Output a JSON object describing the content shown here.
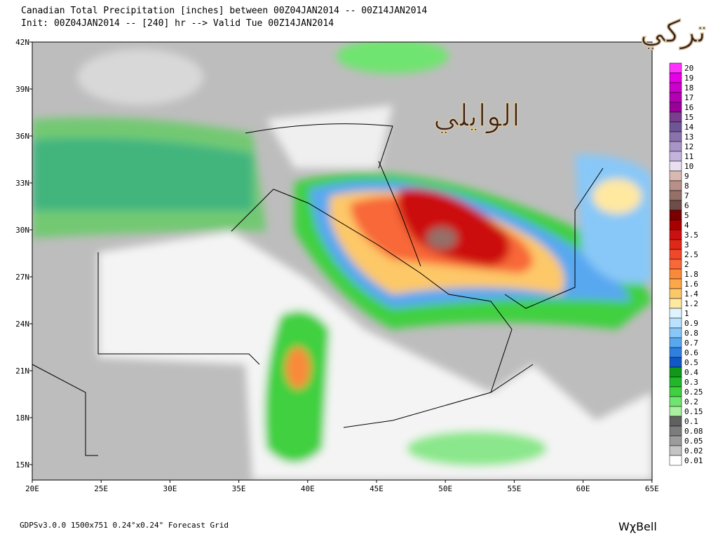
{
  "header": {
    "line1": "Canadian Total Precipitation [inches] between 00Z04JAN2014 -- 00Z14JAN2014",
    "line2": "Init: 00Z04JAN2014 -- [240] hr --> Valid Tue 00Z14JAN2014"
  },
  "watermark": {
    "line1": "تركي",
    "line2": "الوايلي"
  },
  "map": {
    "lat_labels": [
      "42N",
      "39N",
      "36N",
      "33N",
      "30N",
      "27N",
      "24N",
      "21N",
      "18N",
      "15N"
    ],
    "lon_labels": [
      "20E",
      "25E",
      "30E",
      "35E",
      "40E",
      "45E",
      "50E",
      "55E",
      "60E",
      "65E"
    ]
  },
  "legend": {
    "items": [
      {
        "label": "20",
        "color": "#ff33ff"
      },
      {
        "label": "19",
        "color": "#e600e6"
      },
      {
        "label": "18",
        "color": "#cc00cc"
      },
      {
        "label": "17",
        "color": "#b300b3"
      },
      {
        "label": "16",
        "color": "#990099"
      },
      {
        "label": "15",
        "color": "#7a3d8f"
      },
      {
        "label": "14",
        "color": "#6e5696"
      },
      {
        "label": "13",
        "color": "#8a72ad"
      },
      {
        "label": "12",
        "color": "#a894c7"
      },
      {
        "label": "11",
        "color": "#c4b4dc"
      },
      {
        "label": "10",
        "color": "#e8e0f0"
      },
      {
        "label": "9",
        "color": "#d8b8b0"
      },
      {
        "label": "8",
        "color": "#b89088"
      },
      {
        "label": "7",
        "color": "#947068"
      },
      {
        "label": "6",
        "color": "#6e4c48"
      },
      {
        "label": "5",
        "color": "#7a0000"
      },
      {
        "label": "4",
        "color": "#a80000"
      },
      {
        "label": "3.5",
        "color": "#cc1010"
      },
      {
        "label": "3",
        "color": "#e02818"
      },
      {
        "label": "2.5",
        "color": "#f04828"
      },
      {
        "label": "2",
        "color": "#f86838"
      },
      {
        "label": "1.8",
        "color": "#fa8a3a"
      },
      {
        "label": "1.6",
        "color": "#fca848"
      },
      {
        "label": "1.4",
        "color": "#fdc868"
      },
      {
        "label": "1.2",
        "color": "#ffe8a0"
      },
      {
        "label": "1",
        "color": "#e0f4ff"
      },
      {
        "label": "0.9",
        "color": "#b8e2ff"
      },
      {
        "label": "0.8",
        "color": "#88c8f8"
      },
      {
        "label": "0.7",
        "color": "#58a8f0"
      },
      {
        "label": "0.6",
        "color": "#2e80e0"
      },
      {
        "label": "0.5",
        "color": "#1058c8"
      },
      {
        "label": "0.4",
        "color": "#109818"
      },
      {
        "label": "0.3",
        "color": "#20b828"
      },
      {
        "label": "0.25",
        "color": "#40d040"
      },
      {
        "label": "0.2",
        "color": "#70e470"
      },
      {
        "label": "0.15",
        "color": "#a8f0a0"
      },
      {
        "label": "0.1",
        "color": "#606060"
      },
      {
        "label": "0.08",
        "color": "#7c7c7c"
      },
      {
        "label": "0.05",
        "color": "#9c9c9c"
      },
      {
        "label": "0.02",
        "color": "#c4c4c4"
      },
      {
        "label": "0.01",
        "color": "#ffffff"
      }
    ]
  },
  "footer": {
    "info": "GDPSv3.0.0 1500x751 0.24°x0.24° Forecast Grid",
    "logo": "WχBell"
  }
}
